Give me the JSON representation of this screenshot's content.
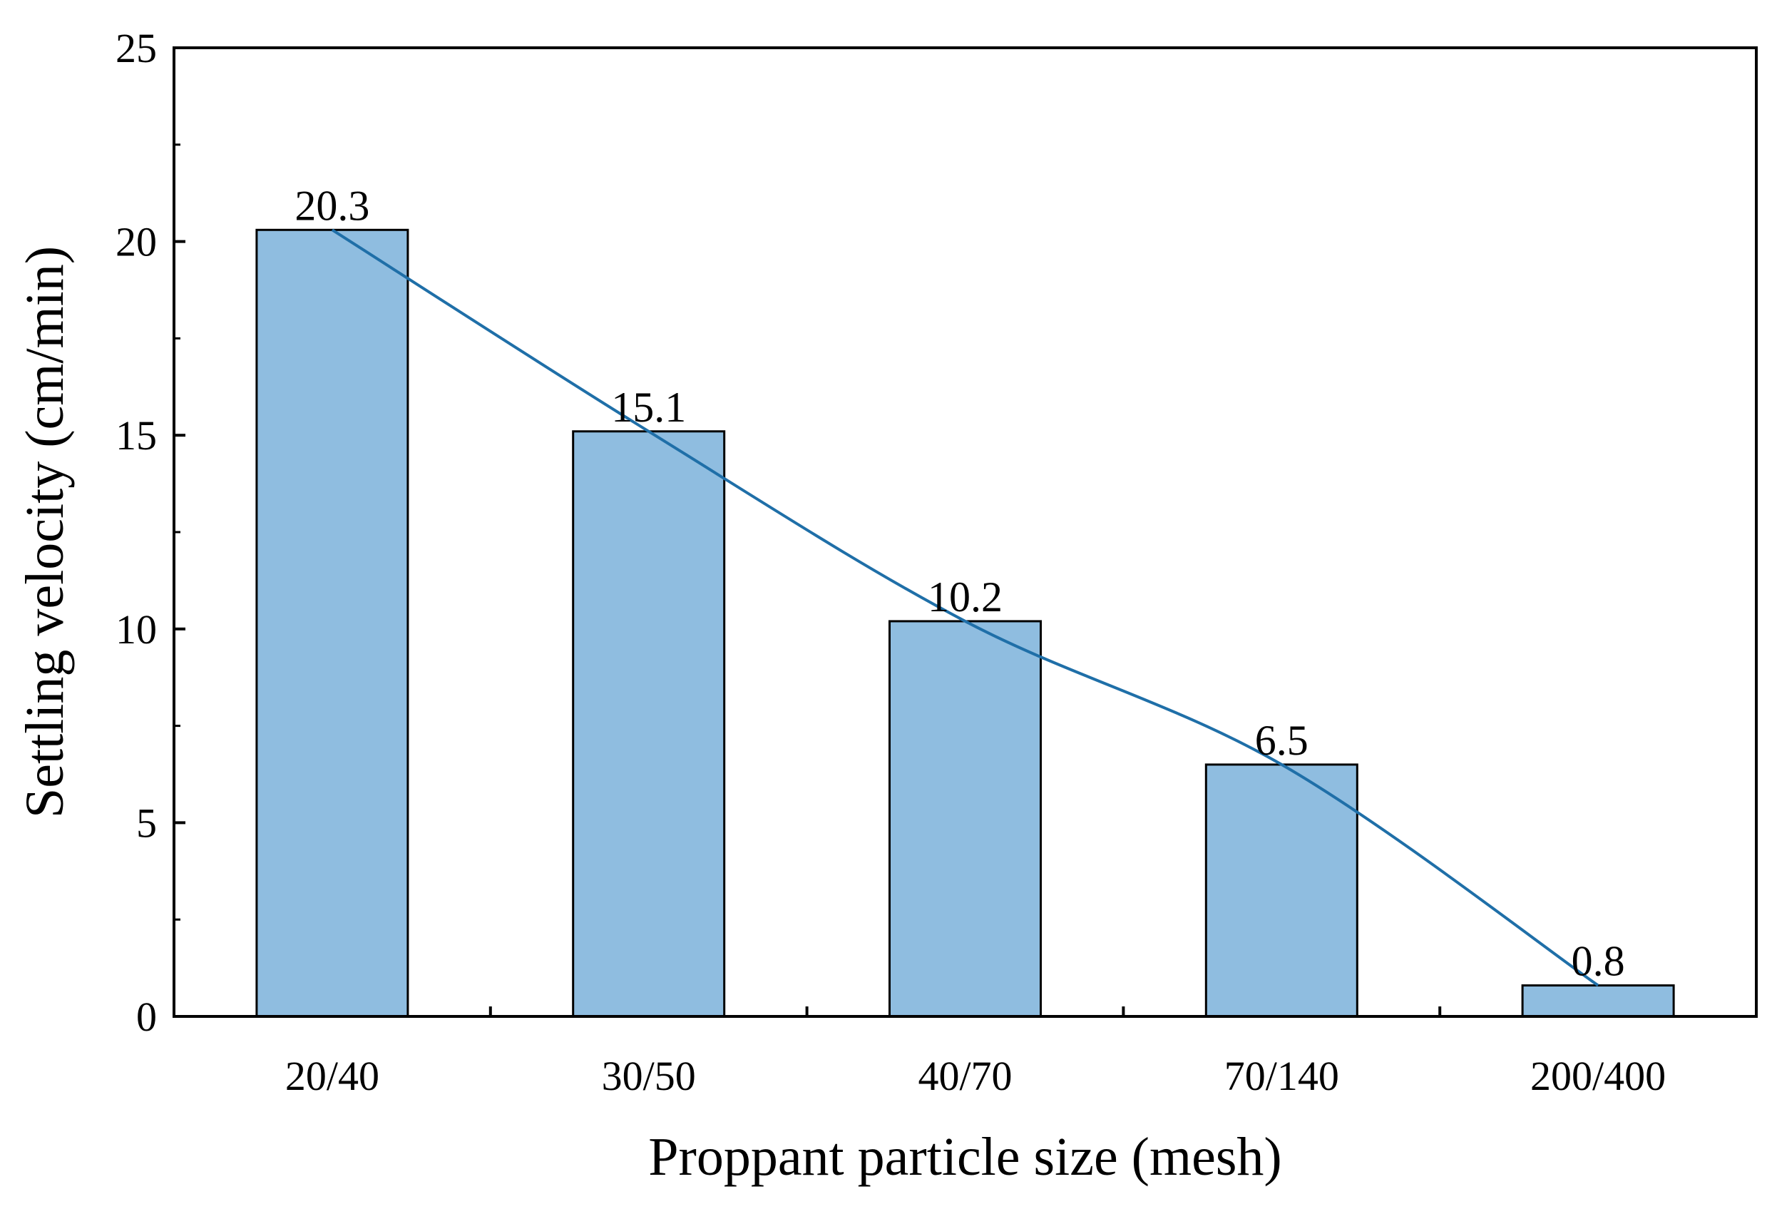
{
  "chart_data": {
    "type": "bar",
    "title": "",
    "xlabel": "Proppant particle size (mesh)",
    "ylabel": "Settling velocity (cm/min)",
    "categories": [
      "20/40",
      "30/50",
      "40/70",
      "70/140",
      "200/400"
    ],
    "values": [
      20.3,
      15.1,
      10.2,
      6.5,
      0.8
    ],
    "data_labels": [
      "20.3",
      "15.1",
      "10.2",
      "6.5",
      "0.8"
    ],
    "ylim": [
      0,
      25
    ],
    "y_ticks": [
      0,
      5,
      10,
      15,
      20,
      25
    ],
    "y_tick_labels": [
      "0",
      "5",
      "10",
      "15",
      "20",
      "25"
    ],
    "grid": false,
    "trend_line": {
      "type": "smooth",
      "through": "bar tops",
      "color": "#1f6fa8"
    },
    "colors": {
      "bar_fill": "#8fbde0",
      "bar_stroke": "#000000",
      "line": "#1f6fa8",
      "axis": "#000000"
    }
  }
}
